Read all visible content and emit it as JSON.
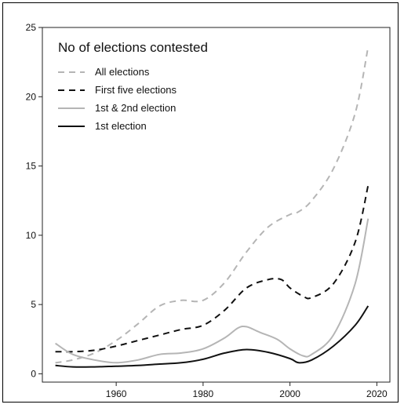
{
  "chart_data": {
    "type": "line",
    "title": "",
    "xlabel": "",
    "ylabel": "",
    "xlim": [
      1943,
      2023
    ],
    "ylim": [
      -0.6,
      25
    ],
    "xticks": [
      1960,
      1980,
      2000,
      2020
    ],
    "yticks": [
      0,
      5,
      10,
      15,
      20,
      25
    ],
    "grid": false,
    "legend": {
      "title": "No of elections contested",
      "placement": "top-left",
      "entries": [
        "All elections",
        "First five elections",
        "1st & 2nd election",
        "1st election"
      ]
    },
    "series": [
      {
        "name": "All elections",
        "color": "#b5b5b5",
        "dash": "dashed",
        "x": [
          1946,
          1950,
          1955,
          1960,
          1965,
          1970,
          1975,
          1980,
          1985,
          1990,
          1995,
          2000,
          2002,
          2005,
          2010,
          2015,
          2018
        ],
        "y": [
          0.8,
          1.0,
          1.5,
          2.4,
          3.6,
          4.9,
          5.3,
          5.3,
          6.6,
          8.8,
          10.6,
          11.5,
          11.7,
          12.5,
          14.8,
          18.8,
          23.6
        ]
      },
      {
        "name": "First five elections",
        "color": "#111111",
        "dash": "dashed",
        "x": [
          1946,
          1950,
          1955,
          1960,
          1965,
          1970,
          1975,
          1980,
          1985,
          1990,
          1995,
          1998,
          2000,
          2003,
          2005,
          2010,
          2015,
          2018
        ],
        "y": [
          1.6,
          1.6,
          1.7,
          2.0,
          2.4,
          2.8,
          3.2,
          3.5,
          4.6,
          6.2,
          6.8,
          6.8,
          6.2,
          5.6,
          5.5,
          6.5,
          9.5,
          13.6
        ]
      },
      {
        "name": "1st & 2nd election",
        "color": "#b5b5b5",
        "dash": "solid",
        "x": [
          1946,
          1950,
          1955,
          1960,
          1965,
          1970,
          1975,
          1980,
          1985,
          1988,
          1990,
          1993,
          1997,
          2000,
          2003,
          2005,
          2010,
          2015,
          2018
        ],
        "y": [
          2.2,
          1.4,
          1.0,
          0.8,
          1.0,
          1.4,
          1.5,
          1.8,
          2.6,
          3.3,
          3.4,
          3.0,
          2.5,
          1.8,
          1.3,
          1.4,
          2.8,
          6.5,
          11.2
        ]
      },
      {
        "name": "1st election",
        "color": "#111111",
        "dash": "solid",
        "x": [
          1946,
          1950,
          1955,
          1960,
          1965,
          1970,
          1975,
          1980,
          1985,
          1990,
          1995,
          2000,
          2002,
          2005,
          2010,
          2015,
          2018
        ],
        "y": [
          0.6,
          0.5,
          0.5,
          0.55,
          0.6,
          0.7,
          0.8,
          1.05,
          1.5,
          1.75,
          1.55,
          1.1,
          0.8,
          1.0,
          2.0,
          3.5,
          4.9
        ]
      }
    ]
  }
}
